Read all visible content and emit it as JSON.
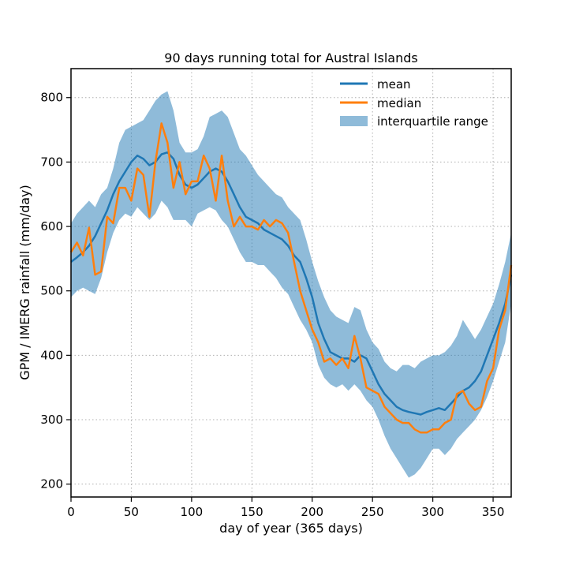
{
  "chart_data": {
    "type": "line",
    "title": "90 days running total for Austral Islands",
    "xlabel": "day of year (365 days)",
    "ylabel": "GPM / IMERG rainfall (mm/day)",
    "xlim": [
      0,
      365
    ],
    "ylim": [
      180,
      845
    ],
    "xticks": [
      0,
      50,
      100,
      150,
      200,
      250,
      300,
      350
    ],
    "yticks": [
      200,
      300,
      400,
      500,
      600,
      700,
      800
    ],
    "grid": true,
    "legend_position": "top-right",
    "colors": {
      "mean": "#1f77b4",
      "median": "#ff7f0e",
      "iqr": "#1f77b4"
    },
    "x": [
      0,
      5,
      10,
      15,
      20,
      25,
      30,
      35,
      40,
      45,
      50,
      55,
      60,
      65,
      70,
      75,
      80,
      85,
      90,
      95,
      100,
      105,
      110,
      115,
      120,
      125,
      130,
      135,
      140,
      145,
      150,
      155,
      160,
      165,
      170,
      175,
      180,
      185,
      190,
      195,
      200,
      205,
      210,
      215,
      220,
      225,
      230,
      235,
      240,
      245,
      250,
      255,
      260,
      265,
      270,
      275,
      280,
      285,
      290,
      295,
      300,
      305,
      310,
      315,
      320,
      325,
      330,
      335,
      340,
      345,
      350,
      355,
      360,
      365
    ],
    "series": [
      {
        "name": "mean",
        "values": [
          545,
          552,
          560,
          570,
          585,
          605,
          625,
          650,
          670,
          685,
          700,
          710,
          705,
          695,
          700,
          712,
          715,
          705,
          680,
          665,
          660,
          665,
          675,
          685,
          690,
          685,
          670,
          650,
          630,
          615,
          610,
          605,
          595,
          590,
          585,
          580,
          570,
          555,
          545,
          520,
          490,
          450,
          425,
          405,
          400,
          395,
          395,
          390,
          400,
          395,
          375,
          355,
          340,
          330,
          320,
          315,
          312,
          310,
          308,
          312,
          315,
          318,
          315,
          325,
          335,
          345,
          350,
          360,
          375,
          400,
          425,
          450,
          480,
          525
        ]
      },
      {
        "name": "median",
        "values": [
          560,
          575,
          555,
          598,
          525,
          530,
          615,
          605,
          660,
          660,
          640,
          690,
          680,
          615,
          700,
          760,
          730,
          660,
          700,
          650,
          670,
          670,
          710,
          690,
          640,
          710,
          640,
          600,
          615,
          600,
          600,
          595,
          610,
          600,
          610,
          605,
          590,
          545,
          500,
          470,
          440,
          420,
          390,
          395,
          385,
          395,
          380,
          430,
          395,
          350,
          345,
          340,
          320,
          310,
          300,
          295,
          295,
          285,
          280,
          280,
          285,
          285,
          295,
          300,
          340,
          345,
          325,
          315,
          320,
          360,
          380,
          440,
          470,
          540
        ]
      },
      {
        "name": "interquartile range",
        "low": [
          490,
          500,
          505,
          500,
          495,
          520,
          560,
          590,
          610,
          620,
          615,
          630,
          620,
          610,
          620,
          640,
          630,
          610,
          610,
          610,
          600,
          620,
          625,
          630,
          625,
          610,
          600,
          580,
          560,
          545,
          545,
          540,
          540,
          530,
          520,
          505,
          495,
          475,
          455,
          440,
          420,
          385,
          365,
          355,
          350,
          355,
          345,
          355,
          345,
          330,
          320,
          300,
          275,
          255,
          240,
          225,
          210,
          215,
          225,
          240,
          255,
          255,
          245,
          255,
          270,
          280,
          290,
          300,
          315,
          335,
          360,
          390,
          420,
          480
        ],
        "high": [
          605,
          620,
          630,
          640,
          630,
          650,
          660,
          690,
          730,
          750,
          755,
          760,
          765,
          780,
          795,
          805,
          810,
          780,
          730,
          715,
          715,
          720,
          740,
          770,
          775,
          780,
          770,
          745,
          720,
          710,
          695,
          680,
          670,
          660,
          650,
          645,
          630,
          620,
          610,
          580,
          545,
          515,
          490,
          470,
          460,
          455,
          450,
          475,
          470,
          440,
          420,
          410,
          390,
          380,
          375,
          385,
          385,
          380,
          390,
          395,
          400,
          400,
          405,
          415,
          430,
          455,
          440,
          425,
          440,
          460,
          480,
          510,
          545,
          590
        ]
      }
    ]
  }
}
